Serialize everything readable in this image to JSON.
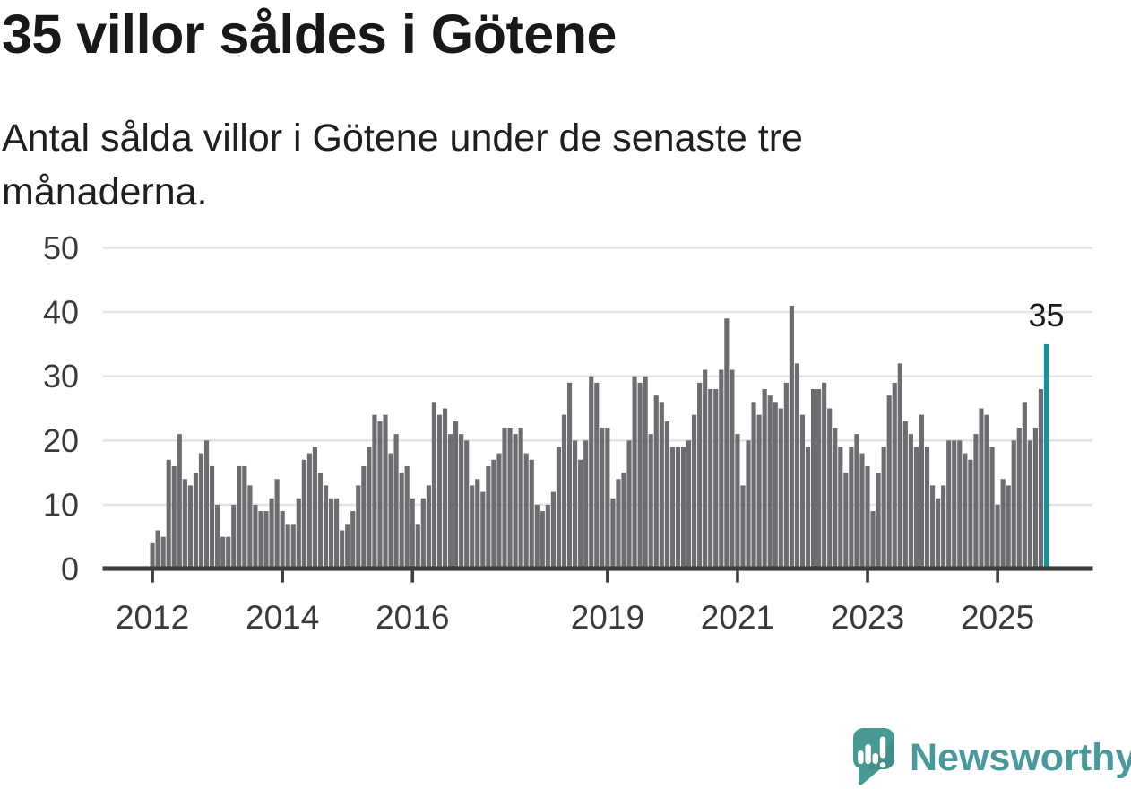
{
  "title": "35 villor såldes i Götene",
  "subtitle": "Antal sålda villor i Götene under de senaste tre månaderna.",
  "branding": {
    "name": "Newsworthy"
  },
  "chart_data": {
    "type": "bar",
    "title": "35 villor såldes i Götene",
    "xlabel": "",
    "ylabel": "",
    "ylim": [
      0,
      50
    ],
    "grid": true,
    "y_ticks": [
      0,
      10,
      20,
      30,
      40,
      50
    ],
    "x_ticks": [
      {
        "label": "2012",
        "month_index": 0
      },
      {
        "label": "2014",
        "month_index": 24
      },
      {
        "label": "2016",
        "month_index": 48
      },
      {
        "label": "2019",
        "month_index": 84
      },
      {
        "label": "2021",
        "month_index": 108
      },
      {
        "label": "2023",
        "month_index": 132
      },
      {
        "label": "2025",
        "month_index": 156
      }
    ],
    "x_start": "2012",
    "x_end": "2025",
    "values": [
      4,
      6,
      5,
      17,
      16,
      21,
      14,
      13,
      15,
      18,
      20,
      16,
      10,
      5,
      5,
      10,
      16,
      16,
      13,
      10,
      9,
      9,
      11,
      14,
      9,
      7,
      7,
      11,
      17,
      18,
      19,
      15,
      13,
      11,
      11,
      6,
      7,
      9,
      13,
      16,
      19,
      24,
      23,
      24,
      18,
      21,
      15,
      16,
      11,
      7,
      11,
      13,
      26,
      24,
      25,
      21,
      23,
      21,
      20,
      13,
      14,
      12,
      16,
      17,
      18,
      22,
      22,
      21,
      22,
      18,
      17,
      10,
      9,
      10,
      12,
      19,
      24,
      29,
      20,
      17,
      20,
      30,
      29,
      22,
      22,
      11,
      14,
      15,
      20,
      30,
      29,
      30,
      21,
      27,
      26,
      23,
      19,
      19,
      19,
      20,
      24,
      29,
      31,
      28,
      28,
      31,
      39,
      31,
      21,
      13,
      20,
      26,
      24,
      28,
      27,
      26,
      25,
      29,
      41,
      32,
      24,
      19,
      28,
      28,
      29,
      25,
      22,
      19,
      15,
      19,
      21,
      18,
      16,
      9,
      15,
      19,
      27,
      29,
      32,
      23,
      21,
      19,
      24,
      19,
      13,
      11,
      13,
      20,
      20,
      20,
      18,
      17,
      21,
      25,
      24,
      19,
      10,
      14,
      13,
      20,
      22,
      26,
      20,
      22,
      28,
      35
    ],
    "highlight_last": {
      "value": 35,
      "label": "35"
    },
    "colors": {
      "bar": "#6c6c71",
      "highlight": "#0b989c",
      "grid": "#e4e4e4",
      "axis": "#3d3d3d",
      "tick_text": "#3a3a3a",
      "annotation_text": "#1b1b1b"
    }
  }
}
